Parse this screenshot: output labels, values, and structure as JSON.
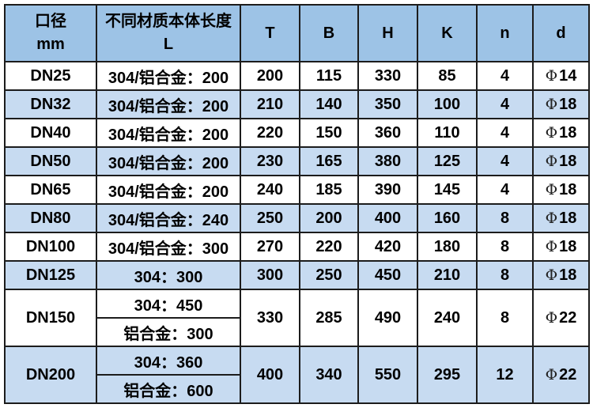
{
  "colors": {
    "header_bg": "#9dc3e6",
    "stripe_bg": "#c7dbf1",
    "border": "#1c1c1c",
    "text": "#000000"
  },
  "header": {
    "diameter_line1": "口径",
    "diameter_line2": "mm",
    "length_line1": "不同材质本体长度",
    "length_line2": "L",
    "cols": [
      "T",
      "B",
      "H",
      "K",
      "n",
      "d"
    ]
  },
  "rows": [
    {
      "dn": "DN25",
      "L": [
        "304/铝合金：200"
      ],
      "T": "200",
      "B": "115",
      "H": "330",
      "K": "85",
      "n": "4",
      "d_sym": "Φ",
      "d_val": "14",
      "shade": false
    },
    {
      "dn": "DN32",
      "L": [
        "304/铝合金：200"
      ],
      "T": "210",
      "B": "140",
      "H": "350",
      "K": "100",
      "n": "4",
      "d_sym": "Φ",
      "d_val": "18",
      "shade": true
    },
    {
      "dn": "DN40",
      "L": [
        "304/铝合金：200"
      ],
      "T": "220",
      "B": "150",
      "H": "360",
      "K": "110",
      "n": "4",
      "d_sym": "Φ",
      "d_val": "18",
      "shade": false
    },
    {
      "dn": "DN50",
      "L": [
        "304/铝合金：200"
      ],
      "T": "230",
      "B": "165",
      "H": "380",
      "K": "125",
      "n": "4",
      "d_sym": "Φ",
      "d_val": "18",
      "shade": true
    },
    {
      "dn": "DN65",
      "L": [
        "304/铝合金：200"
      ],
      "T": "240",
      "B": "185",
      "H": "390",
      "K": "145",
      "n": "4",
      "d_sym": "Φ",
      "d_val": "18",
      "shade": false
    },
    {
      "dn": "DN80",
      "L": [
        "304/铝合金：240"
      ],
      "T": "250",
      "B": "200",
      "H": "400",
      "K": "160",
      "n": "8",
      "d_sym": "Φ",
      "d_val": "18",
      "shade": true
    },
    {
      "dn": "DN100",
      "L": [
        "304/铝合金：300"
      ],
      "T": "270",
      "B": "220",
      "H": "420",
      "K": "180",
      "n": "8",
      "d_sym": "Φ",
      "d_val": "18",
      "shade": false
    },
    {
      "dn": "DN125",
      "L": [
        "304：300"
      ],
      "T": "300",
      "B": "250",
      "H": "450",
      "K": "210",
      "n": "8",
      "d_sym": "Φ",
      "d_val": "18",
      "shade": true
    },
    {
      "dn": "DN150",
      "L": [
        "304：450",
        "铝合金：300"
      ],
      "T": "330",
      "B": "285",
      "H": "490",
      "K": "240",
      "n": "8",
      "d_sym": "Φ",
      "d_val": "22",
      "shade": false
    },
    {
      "dn": "DN200",
      "L": [
        "304：360",
        "铝合金：600"
      ],
      "T": "400",
      "B": "340",
      "H": "550",
      "K": "295",
      "n": "12",
      "d_sym": "Φ",
      "d_val": "22",
      "shade": true
    }
  ],
  "chart_data": {
    "type": "table",
    "title": "",
    "columns": [
      "口径 mm",
      "不同材质本体长度 L",
      "T",
      "B",
      "H",
      "K",
      "n",
      "d"
    ],
    "rows": [
      [
        "DN25",
        "304/铝合金：200",
        "200",
        "115",
        "330",
        "85",
        "4",
        "Φ14"
      ],
      [
        "DN32",
        "304/铝合金：200",
        "210",
        "140",
        "350",
        "100",
        "4",
        "Φ18"
      ],
      [
        "DN40",
        "304/铝合金：200",
        "220",
        "150",
        "360",
        "110",
        "4",
        "Φ18"
      ],
      [
        "DN50",
        "304/铝合金：200",
        "230",
        "165",
        "380",
        "125",
        "4",
        "Φ18"
      ],
      [
        "DN65",
        "304/铝合金：200",
        "240",
        "185",
        "390",
        "145",
        "4",
        "Φ18"
      ],
      [
        "DN80",
        "304/铝合金：240",
        "250",
        "200",
        "400",
        "160",
        "8",
        "Φ18"
      ],
      [
        "DN100",
        "304/铝合金：300",
        "270",
        "220",
        "420",
        "180",
        "8",
        "Φ18"
      ],
      [
        "DN125",
        "304：300",
        "300",
        "250",
        "450",
        "210",
        "8",
        "Φ18"
      ],
      [
        "DN150",
        "304：450 / 铝合金：300",
        "330",
        "285",
        "490",
        "240",
        "8",
        "Φ22"
      ],
      [
        "DN200",
        "304：360 / 铝合金：600",
        "400",
        "340",
        "550",
        "295",
        "12",
        "Φ22"
      ]
    ],
    "layout_hints": {
      "header_bg": "#9dc3e6",
      "zebra_stripe_bg": "#c7dbf1",
      "grid": true,
      "split_cells": {
        "DN150": [
          "304：450",
          "铝合金：300"
        ],
        "DN200": [
          "304：360",
          "铝合金：600"
        ]
      }
    }
  }
}
